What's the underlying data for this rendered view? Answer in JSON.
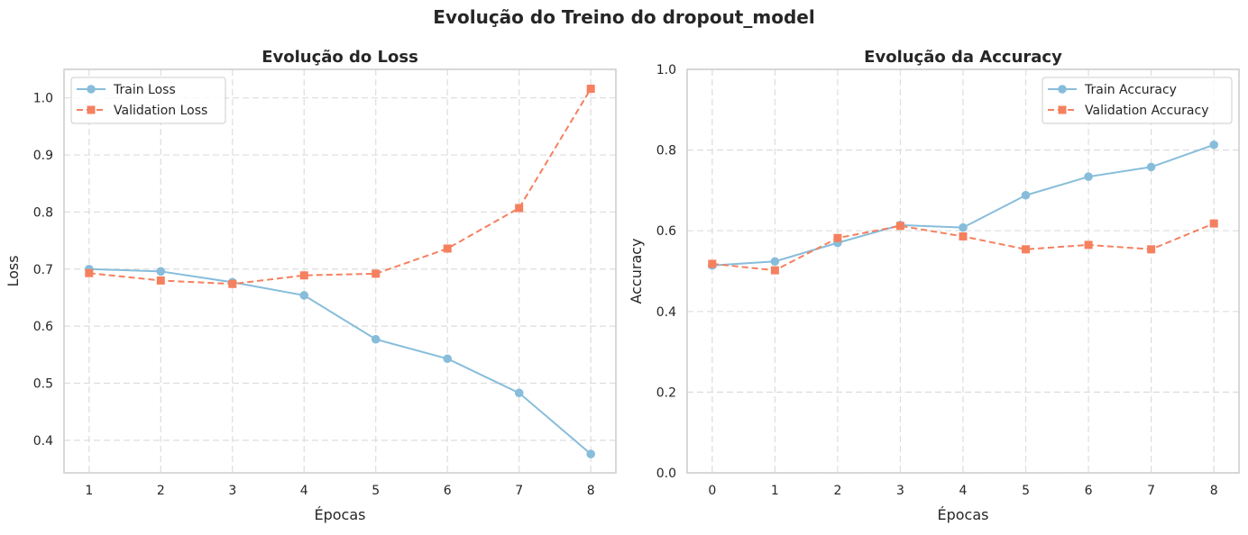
{
  "figure": {
    "title": "Evolução do Treino do dropout_model"
  },
  "colors": {
    "train": "#87bddb",
    "validation": "#f5805f"
  },
  "chart_data": [
    {
      "type": "line",
      "title": "Evolução do Loss",
      "xlabel": "Épocas",
      "ylabel": "Loss",
      "xlim": [
        0.65,
        8.35
      ],
      "ylim": [
        0.343,
        1.05
      ],
      "xticks": [
        1,
        2,
        3,
        4,
        5,
        6,
        7,
        8
      ],
      "yticks": [
        0.4,
        0.5,
        0.6,
        0.7,
        0.8,
        0.9,
        1.0
      ],
      "ytick_labels": [
        "0.4",
        "0.5",
        "0.6",
        "0.7",
        "0.8",
        "0.9",
        "1.0"
      ],
      "grid": true,
      "legend": "upper-left",
      "series": [
        {
          "name": "Train Loss",
          "marker": "circle",
          "linestyle": "solid",
          "x": [
            1,
            2,
            3,
            4,
            5,
            6,
            7,
            8
          ],
          "values": [
            0.7,
            0.696,
            0.677,
            0.654,
            0.577,
            0.543,
            0.483,
            0.376
          ]
        },
        {
          "name": "Validation Loss",
          "marker": "square",
          "linestyle": "dashed",
          "x": [
            1,
            2,
            3,
            4,
            5,
            6,
            7,
            8
          ],
          "values": [
            0.693,
            0.68,
            0.674,
            0.689,
            0.692,
            0.736,
            0.807,
            1.016
          ]
        }
      ]
    },
    {
      "type": "line",
      "title": "Evolução da Accuracy",
      "xlabel": "Épocas",
      "ylabel": "Accuracy",
      "xlim": [
        -0.4,
        8.4
      ],
      "ylim": [
        0.0,
        1.0
      ],
      "xticks": [
        0,
        1,
        2,
        3,
        4,
        5,
        6,
        7,
        8
      ],
      "yticks": [
        0.0,
        0.2,
        0.4,
        0.6,
        0.8,
        1.0
      ],
      "ytick_labels": [
        "0.0",
        "0.2",
        "0.4",
        "0.6",
        "0.8",
        "1.0"
      ],
      "grid": true,
      "legend": "upper-right",
      "series": [
        {
          "name": "Train Accuracy",
          "marker": "circle",
          "linestyle": "solid",
          "x": [
            0,
            1,
            2,
            3,
            4,
            5,
            6,
            7,
            8
          ],
          "values": [
            0.514,
            0.524,
            0.57,
            0.614,
            0.608,
            0.688,
            0.734,
            0.758,
            0.813
          ]
        },
        {
          "name": "Validation Accuracy",
          "marker": "square",
          "linestyle": "dashed",
          "x": [
            0,
            1,
            2,
            3,
            4,
            5,
            6,
            7,
            8
          ],
          "values": [
            0.518,
            0.502,
            0.582,
            0.612,
            0.586,
            0.554,
            0.565,
            0.554,
            0.618
          ]
        }
      ]
    }
  ]
}
